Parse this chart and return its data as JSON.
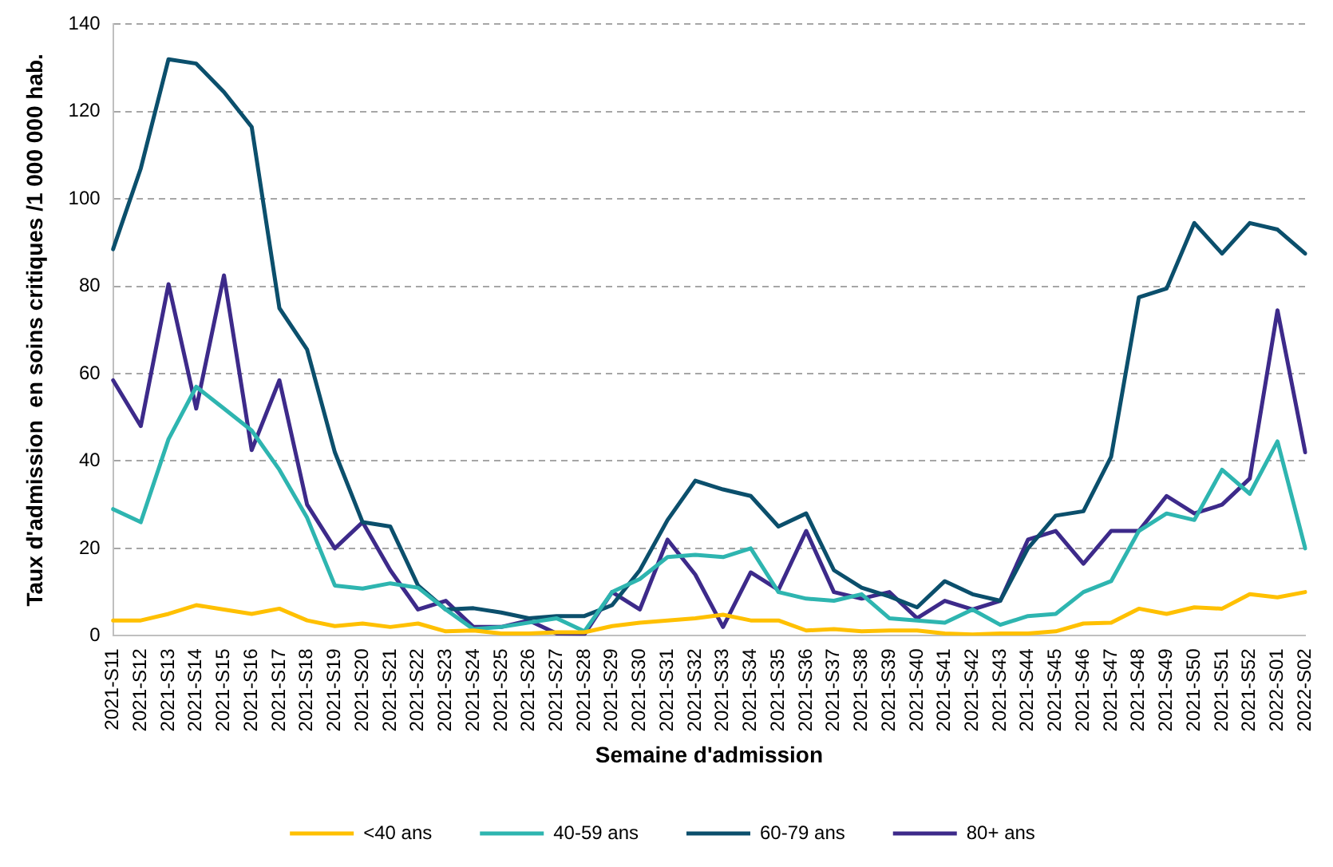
{
  "chart_data": {
    "type": "line",
    "xlabel": "Semaine d'admission",
    "ylabel": "Taux d'admission  en soins critiques /1 000 000 hab.",
    "categories": [
      "2021-S11",
      "2021-S12",
      "2021-S13",
      "2021-S14",
      "2021-S15",
      "2021-S16",
      "2021-S17",
      "2021-S18",
      "2021-S19",
      "2021-S20",
      "2021-S21",
      "2021-S22",
      "2021-S23",
      "2021-S24",
      "2021-S25",
      "2021-S26",
      "2021-S27",
      "2021-S28",
      "2021-S29",
      "2021-S30",
      "2021-S31",
      "2021-S32",
      "2021-S33",
      "2021-S34",
      "2021-S35",
      "2021-S36",
      "2021-S37",
      "2021-S38",
      "2021-S39",
      "2021-S40",
      "2021-S41",
      "2021-S42",
      "2021-S43",
      "2021-S44",
      "2021-S45",
      "2021-S46",
      "2021-S47",
      "2021-S48",
      "2021-S49",
      "2021-S50",
      "2021-S51",
      "2021-S52",
      "2022-S01",
      "2022-S02"
    ],
    "series": [
      {
        "name": "<40 ans",
        "color": "#ffc000",
        "values": [
          3.5,
          3.5,
          5,
          7,
          6,
          5,
          6.2,
          3.5,
          2.2,
          2.8,
          2,
          2.8,
          1,
          1.2,
          0.5,
          0.5,
          0.8,
          0.8,
          2.2,
          3,
          3.5,
          4,
          4.8,
          3.5,
          3.5,
          1.2,
          1.5,
          1,
          1.2,
          1.2,
          0.5,
          0.3,
          0.5,
          0.5,
          1,
          2.8,
          3,
          6.2,
          5,
          6.5,
          6.2,
          9.5,
          8.8,
          10
        ]
      },
      {
        "name": "40-59 ans",
        "color": "#2eb5b0",
        "values": [
          29,
          26,
          45,
          57,
          52,
          47,
          38,
          27,
          11.5,
          10.8,
          12,
          11,
          6,
          1.5,
          2,
          3,
          4,
          1,
          10,
          13,
          18,
          18.5,
          18,
          20,
          10,
          8.5,
          8,
          9.5,
          4,
          3.5,
          3,
          6,
          2.5,
          4.5,
          5,
          10,
          12.5,
          24,
          28,
          26.5,
          38,
          32.5,
          44.5,
          20
        ]
      },
      {
        "name": "60-79 ans",
        "color": "#0b4f6c",
        "values": [
          88.5,
          107,
          132,
          131,
          124.5,
          116.5,
          75,
          65.5,
          42,
          26,
          25,
          11.5,
          6,
          6.3,
          5.3,
          4,
          4.5,
          4.5,
          7,
          15,
          26.5,
          35.5,
          33.5,
          32,
          25,
          28,
          15,
          11,
          9,
          6.5,
          12.5,
          9.5,
          8,
          20,
          27.5,
          28.5,
          41,
          77.5,
          79.5,
          94.5,
          87.5,
          94.5,
          93,
          87.5
        ]
      },
      {
        "name": "80+ ans",
        "color": "#3d2a8a",
        "values": [
          58.5,
          48,
          80.5,
          52,
          82.5,
          42.5,
          58.5,
          30,
          20,
          26,
          15,
          6,
          8,
          2,
          2,
          3.5,
          0.5,
          0.3,
          10,
          6,
          22,
          14,
          2,
          14.5,
          10.5,
          24,
          10,
          8.5,
          10,
          4,
          8,
          6,
          8,
          22,
          24,
          16.5,
          24,
          24,
          32,
          28,
          30,
          36,
          74.5,
          42
        ]
      }
    ],
    "ylim": [
      0,
      140
    ],
    "yticks": [
      0,
      20,
      40,
      60,
      80,
      100,
      120,
      140
    ],
    "grid": "y",
    "legend": "bottom",
    "marker": "none",
    "line_style": "solid"
  }
}
